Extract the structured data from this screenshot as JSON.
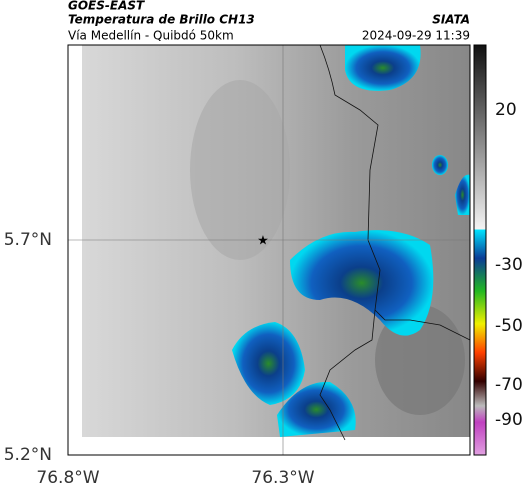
{
  "header": {
    "title": "GOES-EAST",
    "subtitle": "Temperatura de Brillo CH13",
    "region": "Vía Medellín - Quibdó 50km",
    "source": "SIATA",
    "timestamp": "2024-09-29 11:39"
  },
  "map": {
    "lat_labels": [
      "5.7°N",
      "5.2°N"
    ],
    "lon_labels": [
      "76.8°W",
      "76.3°W"
    ]
  },
  "colorbar": {
    "labels": [
      "20",
      "-30",
      "-50",
      "-70",
      "-90"
    ]
  }
}
